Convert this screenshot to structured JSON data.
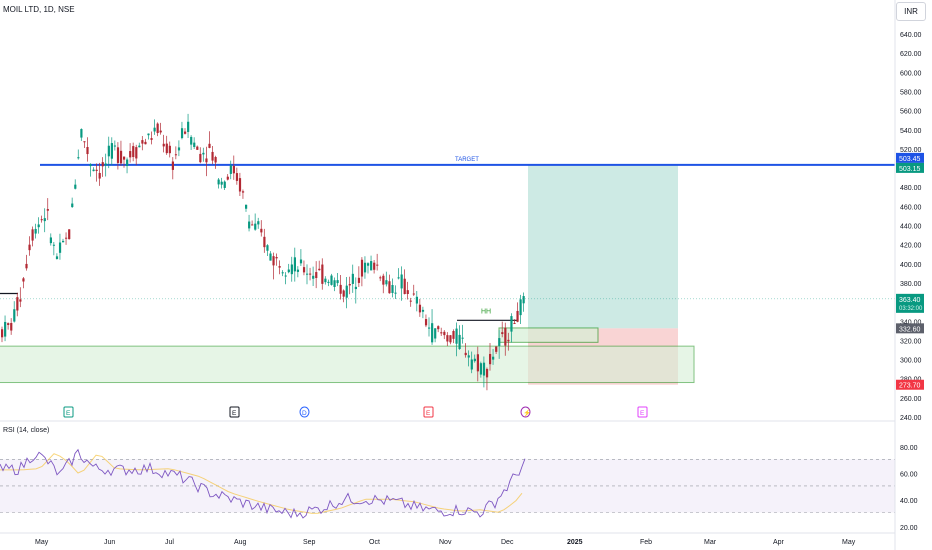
{
  "header": {
    "title": "MOIL LTD, 1D, NSE",
    "currency": "INR"
  },
  "rsi": {
    "title": "RSI (14, close)",
    "ticks": [
      "80.00",
      "60.00",
      "40.00",
      "20.00"
    ]
  },
  "price_axis": {
    "ticks": [
      "640.00",
      "620.00",
      "600.00",
      "580.00",
      "560.00",
      "540.00",
      "520.00",
      "500.00",
      "480.00",
      "460.00",
      "440.00",
      "420.00",
      "400.00",
      "380.00",
      "360.00",
      "340.00",
      "320.00",
      "300.00",
      "280.00",
      "260.00",
      "240.00"
    ]
  },
  "time_axis": {
    "labels": [
      "May",
      "Jun",
      "Jul",
      "Aug",
      "Sep",
      "Oct",
      "Nov",
      "Dec",
      "2025",
      "Feb",
      "Mar",
      "Apr",
      "May"
    ]
  },
  "annotations": {
    "target": "TARGET",
    "hh": "HH"
  },
  "badges": {
    "target_1": "503.45",
    "target_2": "503.15",
    "last_price": "363.40",
    "countdown": "03:32:00",
    "level": "332.60",
    "stop": "273.70"
  },
  "event_markers": [
    "E",
    "E",
    "D",
    "E",
    "⚡",
    "E"
  ],
  "colors": {
    "up": "#089981",
    "down": "#b22833",
    "target_line": "#1e53e5",
    "profit_zone": "#b2dfd6",
    "loss_zone": "#f7c9c9",
    "demand_zone": "#d6f0d6",
    "zone_border": "#2e9b2e",
    "rsi_line": "#7e57c2",
    "rsi_ma": "#f5c342"
  },
  "chart_data": {
    "type": "candlestick",
    "symbol": "MOIL LTD",
    "interval": "1D",
    "ylim": [
      240,
      650
    ],
    "key_levels": {
      "target": 503.3,
      "last": 363.4,
      "level": 332.6,
      "stop": 273.7
    },
    "rsi_ylim": [
      15,
      90
    ],
    "rsi_bands": [
      70,
      50,
      30
    ]
  }
}
